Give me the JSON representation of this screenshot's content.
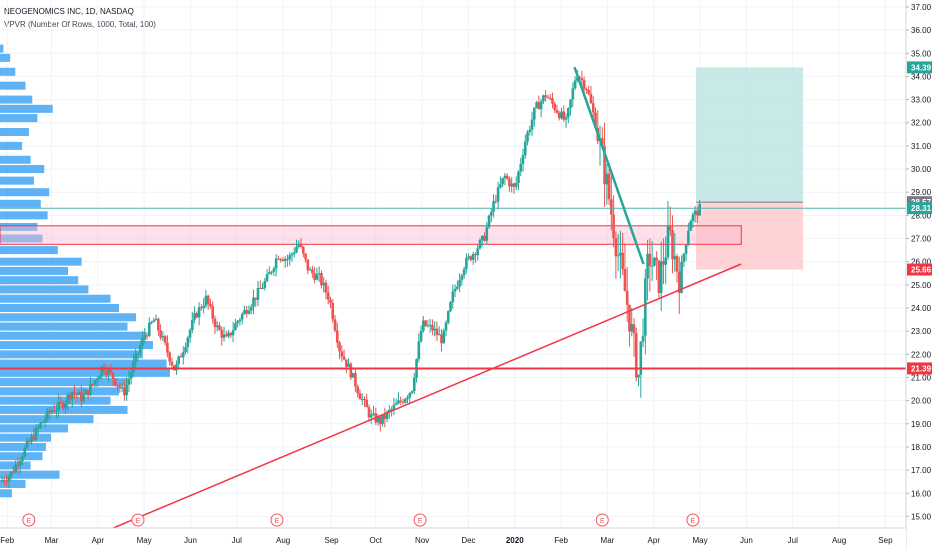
{
  "header": {
    "symbol_title": "NEOGENOMICS INC, 1D, NASDAQ",
    "indicator": "VPVR (Number Of Rows, 1000, Total, 100)"
  },
  "colors": {
    "up": "#26a69a",
    "down": "#ef5350",
    "volume_profile": "#42a5f5",
    "trendline_support": "#f23645",
    "trendline_resistance": "#26a69a",
    "target_zone": "#b2dfdb",
    "stop_zone": "#ffcdd2",
    "grid": "#f0f3fa"
  },
  "chart_data": {
    "type": "candlestick",
    "title": "NEOGENOMICS INC",
    "interval": "1D",
    "exchange": "NASDAQ",
    "y_axis": {
      "position": "right",
      "range": [
        14.5,
        37.3
      ],
      "ticks": [
        "15.00",
        "16.00",
        "17.00",
        "18.00",
        "19.00",
        "20.00",
        "21.00",
        "22.00",
        "23.00",
        "24.00",
        "25.00",
        "26.00",
        "27.00",
        "28.00",
        "29.00",
        "30.00",
        "31.00",
        "32.00",
        "33.00",
        "34.00",
        "35.00",
        "36.00",
        "37.00"
      ]
    },
    "x_axis": {
      "labels": [
        {
          "text": "Feb",
          "t": 0.7
        },
        {
          "text": "Mar",
          "t": 5
        },
        {
          "text": "Apr",
          "t": 9.5
        },
        {
          "text": "May",
          "t": 14
        },
        {
          "text": "Jun",
          "t": 18.5
        },
        {
          "text": "Jul",
          "t": 23
        },
        {
          "text": "Aug",
          "t": 27.5
        },
        {
          "text": "Sep",
          "t": 32.2
        },
        {
          "text": "Oct",
          "t": 36.5
        },
        {
          "text": "Nov",
          "t": 41
        },
        {
          "text": "Dec",
          "t": 45.5
        },
        {
          "text": "2020",
          "t": 50
        },
        {
          "text": "Feb",
          "t": 54.5
        },
        {
          "text": "Mar",
          "t": 59
        },
        {
          "text": "Apr",
          "t": 63.5
        },
        {
          "text": "May",
          "t": 68
        },
        {
          "text": "Jun",
          "t": 72.5
        },
        {
          "text": "Jul",
          "t": 77
        },
        {
          "text": "Aug",
          "t": 81.5
        },
        {
          "text": "Sep",
          "t": 86
        }
      ]
    },
    "earnings_markers": [
      {
        "label": "E",
        "t": 2.8
      },
      {
        "label": "E",
        "t": 13.4
      },
      {
        "label": "E",
        "t": 26.9
      },
      {
        "label": "E",
        "t": 40.8
      },
      {
        "label": "E",
        "t": 58.5
      },
      {
        "label": "E",
        "t": 67.3
      }
    ],
    "price_path": [
      [
        0,
        16.5
      ],
      [
        1,
        16.8
      ],
      [
        2,
        17.6
      ],
      [
        3,
        18.3
      ],
      [
        4,
        19.0
      ],
      [
        5,
        19.6
      ],
      [
        6,
        19.8
      ],
      [
        7,
        20.4
      ],
      [
        8,
        20.1
      ],
      [
        9,
        20.7
      ],
      [
        10,
        21.5
      ],
      [
        11,
        21.0
      ],
      [
        12,
        20.3
      ],
      [
        13,
        21.6
      ],
      [
        14,
        22.8
      ],
      [
        15,
        23.5
      ],
      [
        16,
        22.4
      ],
      [
        17,
        21.3
      ],
      [
        18,
        22.5
      ],
      [
        19,
        23.7
      ],
      [
        20,
        24.4
      ],
      [
        21,
        23.2
      ],
      [
        22,
        22.6
      ],
      [
        23,
        23.4
      ],
      [
        24,
        24.0
      ],
      [
        25,
        24.6
      ],
      [
        26,
        25.3
      ],
      [
        27,
        26.3
      ],
      [
        28,
        26.1
      ],
      [
        29,
        26.8
      ],
      [
        30,
        25.6
      ],
      [
        31,
        25.3
      ],
      [
        32,
        24.4
      ],
      [
        33,
        22.2
      ],
      [
        34,
        21.3
      ],
      [
        35,
        20.2
      ],
      [
        36,
        19.3
      ],
      [
        37,
        19.1
      ],
      [
        38,
        19.6
      ],
      [
        39,
        20.0
      ],
      [
        40,
        20.5
      ],
      [
        41,
        23.3
      ],
      [
        42,
        23.1
      ],
      [
        43,
        22.6
      ],
      [
        44,
        24.6
      ],
      [
        45,
        25.8
      ],
      [
        46,
        26.4
      ],
      [
        47,
        27.0
      ],
      [
        48,
        28.6
      ],
      [
        49,
        29.7
      ],
      [
        50,
        29.1
      ],
      [
        51,
        31.2
      ],
      [
        52,
        32.6
      ],
      [
        53,
        33.2
      ],
      [
        54,
        32.6
      ],
      [
        55,
        32.0
      ],
      [
        56,
        34.2
      ],
      [
        57,
        33.5
      ],
      [
        58,
        31.7
      ],
      [
        59,
        29.2
      ],
      [
        60,
        26.4
      ],
      [
        61,
        24.0
      ],
      [
        62,
        21.0
      ],
      [
        63,
        26.3
      ],
      [
        64,
        25.2
      ],
      [
        65,
        27.2
      ],
      [
        66,
        25.3
      ],
      [
        67,
        27.8
      ],
      [
        68,
        28.3
      ]
    ],
    "annotations": {
      "support_trendline": {
        "from": [
          11,
          14.5
        ],
        "to": [
          72,
          25.9
        ]
      },
      "resistance_trendline": {
        "from": [
          55.8,
          34.4
        ],
        "to": [
          62.5,
          25.9
        ]
      },
      "horizontal_support": {
        "price": 21.39
      },
      "horizontal_line_current": {
        "price": 28.31
      },
      "resistance_band": {
        "top": 27.55,
        "bottom": 26.75,
        "t_end": 72
      },
      "target_zone": {
        "top": 34.39,
        "bottom": 28.57,
        "t_start": 67.6,
        "t_end": 78
      },
      "stop_zone": {
        "top": 28.57,
        "bottom": 25.66,
        "t_start": 67.6,
        "t_end": 78
      }
    },
    "price_labels": [
      {
        "text": "34.39",
        "price": 34.39,
        "color": "#26a69a"
      },
      {
        "text": "28.57",
        "price": 28.57,
        "color": "#787b86"
      },
      {
        "text": "28.31",
        "price": 28.31,
        "color": "#26a69a"
      },
      {
        "text": "25.66",
        "price": 25.66,
        "color": "#f23645"
      },
      {
        "text": "21.39",
        "price": 21.39,
        "color": "#f23645"
      }
    ],
    "volume_profile_nodes": [
      [
        35.2,
        4
      ],
      [
        34.8,
        12
      ],
      [
        34.2,
        18
      ],
      [
        33.6,
        30
      ],
      [
        33.0,
        38
      ],
      [
        32.6,
        62
      ],
      [
        32.2,
        44
      ],
      [
        31.6,
        34
      ],
      [
        31.0,
        26
      ],
      [
        30.4,
        36
      ],
      [
        30.0,
        52
      ],
      [
        29.5,
        40
      ],
      [
        29.0,
        58
      ],
      [
        28.5,
        48
      ],
      [
        28.0,
        56
      ],
      [
        27.5,
        44
      ],
      [
        27.0,
        50
      ],
      [
        26.5,
        68
      ],
      [
        26.0,
        96
      ],
      [
        25.6,
        80
      ],
      [
        25.2,
        92
      ],
      [
        24.8,
        104
      ],
      [
        24.4,
        130
      ],
      [
        24.0,
        140
      ],
      [
        23.6,
        160
      ],
      [
        23.2,
        150
      ],
      [
        22.8,
        172
      ],
      [
        22.4,
        180
      ],
      [
        22.0,
        168
      ],
      [
        21.6,
        196
      ],
      [
        21.2,
        200
      ],
      [
        20.8,
        150
      ],
      [
        20.4,
        140
      ],
      [
        20.0,
        130
      ],
      [
        19.6,
        150
      ],
      [
        19.2,
        110
      ],
      [
        18.8,
        80
      ],
      [
        18.4,
        60
      ],
      [
        18.0,
        54
      ],
      [
        17.6,
        50
      ],
      [
        17.2,
        36
      ],
      [
        16.8,
        70
      ],
      [
        16.4,
        30
      ],
      [
        16.0,
        14
      ]
    ]
  }
}
